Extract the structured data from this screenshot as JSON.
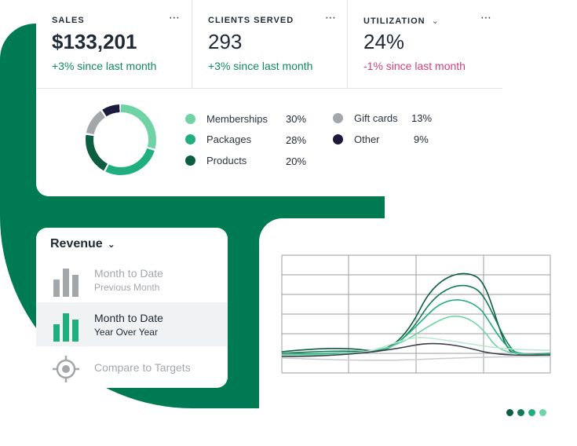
{
  "stats": [
    {
      "label": "SALES",
      "value": "$133,201",
      "change": "+3% since last month",
      "trend": "up",
      "has_dropdown": false
    },
    {
      "label": "CLIENTS SERVED",
      "value": "293",
      "change": "+3% since last month",
      "trend": "up",
      "has_dropdown": false
    },
    {
      "label": "UTILIZATION",
      "value": "24%",
      "change": "-1% since last month",
      "trend": "down",
      "has_dropdown": true
    }
  ],
  "more_icon": "⋯",
  "sales_breakdown": [
    {
      "label": "Memberships",
      "pct": "30%",
      "value": 30,
      "color": "#6fd3a6"
    },
    {
      "label": "Packages",
      "pct": "28%",
      "value": 28,
      "color": "#1fae7d"
    },
    {
      "label": "Products",
      "pct": "20%",
      "value": 20,
      "color": "#0b5e40"
    },
    {
      "label": "Gift cards",
      "pct": "13%",
      "value": 13,
      "color": "#a4a7aa"
    },
    {
      "label": "Other",
      "pct": "9%",
      "value": 9,
      "color": "#1c1b3d"
    }
  ],
  "revenue": {
    "title": "Revenue",
    "options": [
      {
        "title": "Month to Date",
        "subtitle": "Previous Month",
        "active": false,
        "icon": "bar-chart-icon"
      },
      {
        "title": "Month to Date",
        "subtitle": "Year Over Year",
        "active": true,
        "icon": "bar-chart-icon"
      },
      {
        "title": "Compare to Targets",
        "subtitle": "",
        "active": false,
        "icon": "target-icon"
      }
    ]
  },
  "pager": {
    "count": 4,
    "colors": [
      "#0b5e40",
      "#0f7c55",
      "#1fae7d",
      "#6fd3a6"
    ]
  },
  "colors": {
    "brand_green": "#007a52",
    "positive": "#0f8a5f",
    "negative": "#d43f78"
  }
}
